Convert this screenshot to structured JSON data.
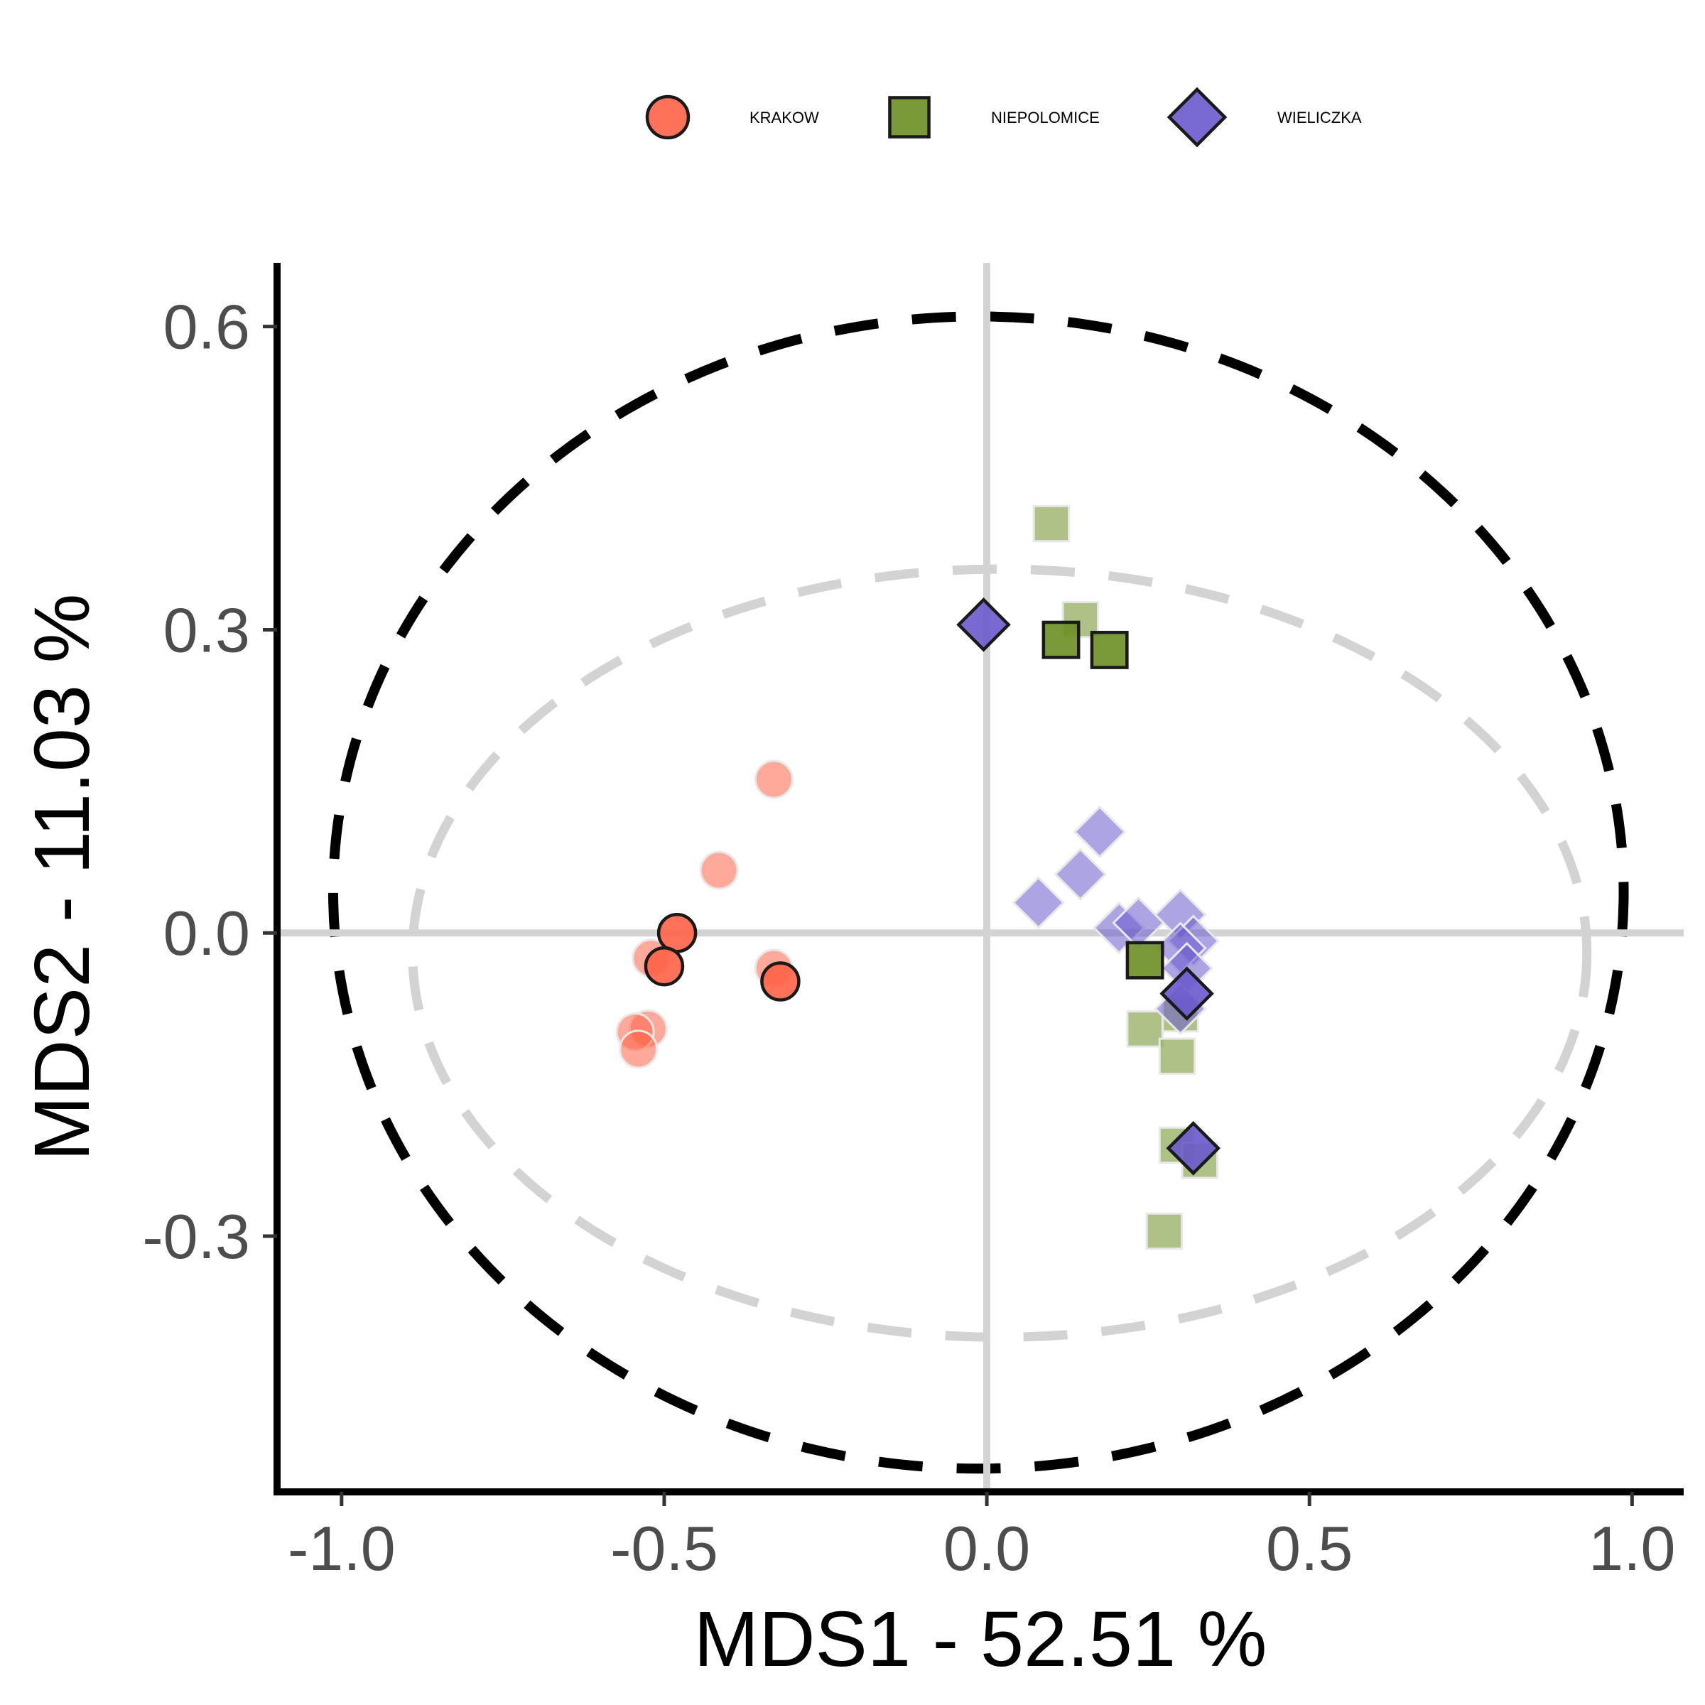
{
  "chart_data": {
    "type": "scatter",
    "xlabel": "MDS1 - 52.51 %",
    "ylabel": "MDS2 - 11.03 %",
    "xlim": [
      -1.1,
      1.08
    ],
    "ylim": [
      -0.553,
      0.663
    ],
    "x_ticks": [
      {
        "value": -1.0,
        "label": "-1.0"
      },
      {
        "value": -0.5,
        "label": "-0.5"
      },
      {
        "value": 0.0,
        "label": "0.0"
      },
      {
        "value": 0.5,
        "label": "0.5"
      },
      {
        "value": 1.0,
        "label": "1.0"
      }
    ],
    "y_ticks": [
      {
        "value": 0.6,
        "label": "0.6"
      },
      {
        "value": 0.3,
        "label": "0.3"
      },
      {
        "value": 0.0,
        "label": "0.0"
      },
      {
        "value": -0.3,
        "label": "-0.3"
      }
    ],
    "grid": false,
    "reference_lines": {
      "x": 0,
      "y": 0,
      "color": "#d3d3d3"
    },
    "legend": {
      "position": "top"
    },
    "series": [
      {
        "name": "KRAKOW",
        "marker": "circle",
        "color": "#ff6347",
        "highlighted": [
          [
            -0.48,
            0.0
          ],
          [
            -0.5,
            -0.033
          ],
          [
            -0.32,
            -0.048
          ]
        ],
        "faded": [
          [
            -0.33,
            0.152
          ],
          [
            -0.415,
            0.062
          ],
          [
            -0.52,
            -0.025
          ],
          [
            -0.33,
            -0.035
          ],
          [
            -0.525,
            -0.095
          ],
          [
            -0.545,
            -0.098
          ],
          [
            -0.54,
            -0.115
          ]
        ]
      },
      {
        "name": "NIEPOLOMICE",
        "marker": "square",
        "color": "#6b8e23",
        "highlighted": [
          [
            0.115,
            0.29
          ],
          [
            0.19,
            0.28
          ],
          [
            0.245,
            -0.027
          ]
        ],
        "faded": [
          [
            0.1,
            0.405
          ],
          [
            0.145,
            0.31
          ],
          [
            0.245,
            -0.095
          ],
          [
            0.3,
            -0.08
          ],
          [
            0.295,
            -0.122
          ],
          [
            0.295,
            -0.21
          ],
          [
            0.33,
            -0.225
          ],
          [
            0.275,
            -0.295
          ]
        ]
      },
      {
        "name": "WIELICZKA",
        "marker": "diamond",
        "color": "#6a5acd",
        "highlighted": [
          [
            -0.005,
            0.305
          ],
          [
            0.31,
            -0.06
          ],
          [
            0.32,
            -0.213
          ]
        ],
        "faded": [
          [
            0.175,
            0.1
          ],
          [
            0.145,
            0.058
          ],
          [
            0.08,
            0.03
          ],
          [
            0.205,
            0.005
          ],
          [
            0.235,
            0.01
          ],
          [
            0.3,
            0.018
          ],
          [
            0.32,
            -0.008
          ],
          [
            0.3,
            -0.015
          ],
          [
            0.31,
            -0.035
          ],
          [
            0.3,
            -0.075
          ]
        ]
      }
    ],
    "ellipses": [
      {
        "color": "#000000",
        "center": [
          -0.013,
          0.04
        ],
        "radii": [
          1.0,
          0.57
        ]
      },
      {
        "color": "#d3d3d3",
        "center": [
          0.02,
          -0.02
        ],
        "radii": [
          0.91,
          0.38
        ]
      }
    ]
  }
}
